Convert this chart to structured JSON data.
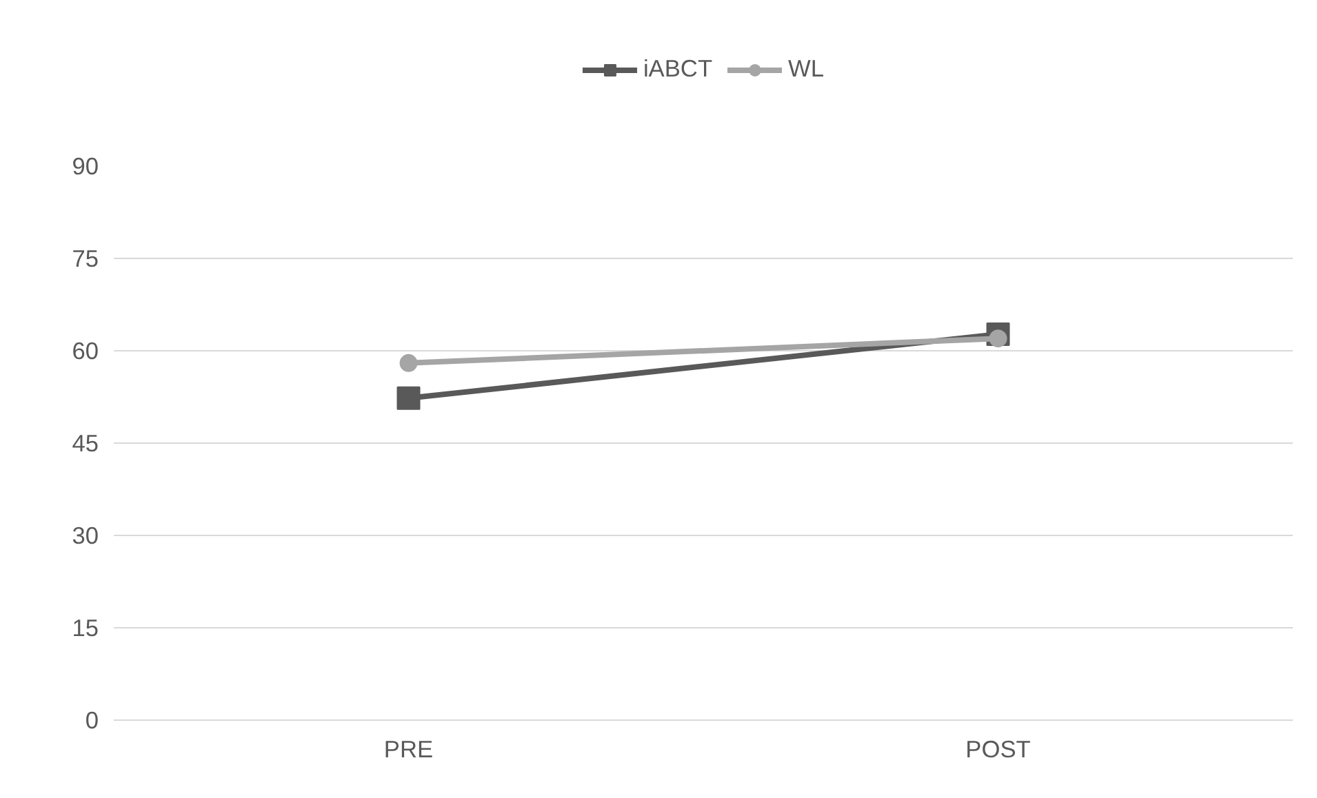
{
  "chart_data": {
    "type": "line",
    "categories": [
      "PRE",
      "POST"
    ],
    "series": [
      {
        "name": "iABCT",
        "color": "#595959",
        "values": [
          52.3,
          62.7
        ],
        "marker": "square"
      },
      {
        "name": "WL",
        "color": "#a5a5a5",
        "values": [
          58.0,
          62.0
        ],
        "marker": "circle"
      }
    ],
    "ylim": [
      0,
      90
    ],
    "yticks": [
      0,
      15,
      30,
      45,
      60,
      75,
      90
    ],
    "grid": "y",
    "legend": "top",
    "line_style": "solid"
  }
}
